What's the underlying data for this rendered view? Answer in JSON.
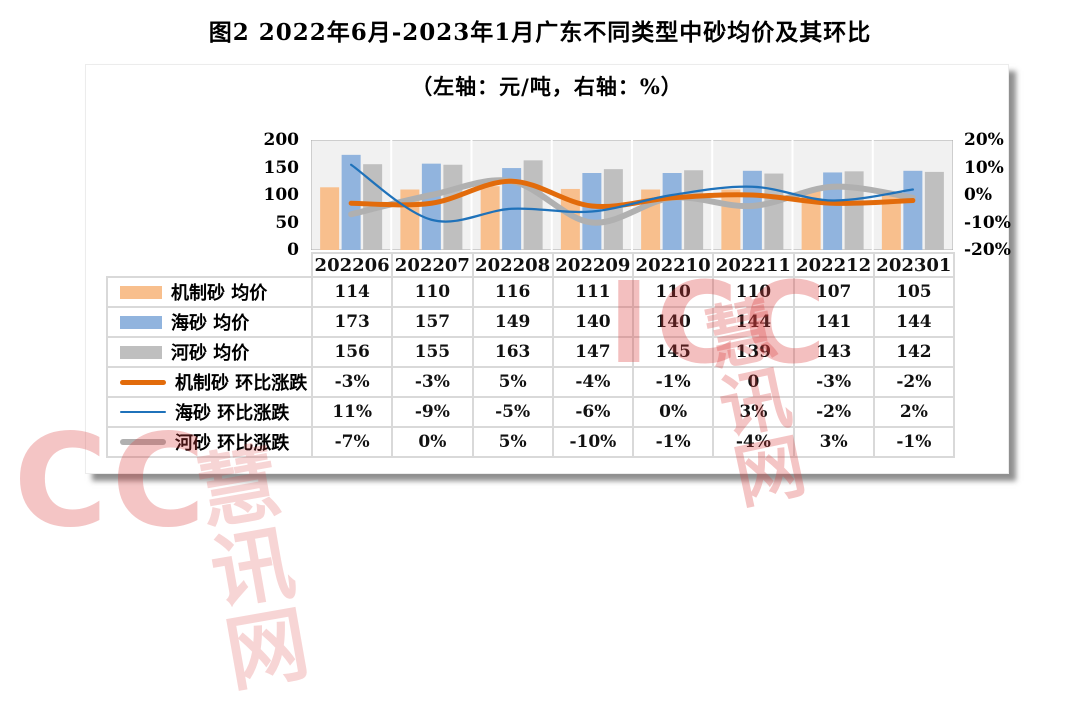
{
  "page": {
    "title": "图2 2022年6月-2023年1月广东不同类型中砂均价及其环比",
    "subtitle": "（左轴：元/吨，右轴：%）"
  },
  "watermark": {
    "brand": "ICC",
    "site": "慧讯网"
  },
  "chart_data": {
    "type": "bar+line",
    "title": "图2 2022年6月-2023年1月广东不同类型中砂均价及其环比",
    "subtitle": "（左轴：元/吨，右轴：%）",
    "categories": [
      "202206",
      "202207",
      "202208",
      "202209",
      "202210",
      "202211",
      "202212",
      "202301"
    ],
    "left_axis": {
      "unit": "元/吨",
      "ticks": [
        "200",
        "150",
        "100",
        "50",
        "0"
      ],
      "range": [
        0,
        200
      ]
    },
    "right_axis": {
      "unit": "%",
      "ticks": [
        "20%",
        "10%",
        "0%",
        "-10%",
        "-20%"
      ],
      "range": [
        -20,
        20
      ]
    },
    "grid": "vertical-white-separators",
    "legend_position": "table-left",
    "bar_series": [
      {
        "name": "机制砂 均价",
        "color": "#F8BF8D",
        "values": [
          114,
          110,
          116,
          111,
          110,
          110,
          107,
          105
        ],
        "display": [
          "114",
          "110",
          "116",
          "111",
          "110",
          "110",
          "107",
          "105"
        ]
      },
      {
        "name": "海砂 均价",
        "color": "#91B4DE",
        "values": [
          173,
          157,
          149,
          140,
          140,
          144,
          141,
          144
        ],
        "display": [
          "173",
          "157",
          "149",
          "140",
          "140",
          "144",
          "141",
          "144"
        ]
      },
      {
        "name": "河砂 均价",
        "color": "#BFBFBF",
        "values": [
          156,
          155,
          163,
          147,
          145,
          139,
          143,
          142
        ],
        "display": [
          "156",
          "155",
          "163",
          "147",
          "145",
          "139",
          "143",
          "142"
        ]
      }
    ],
    "line_series": [
      {
        "name": "机制砂 环比涨跌",
        "color": "#E26B0B",
        "stroke_width": 5,
        "values": [
          -3,
          -3,
          5,
          -4,
          -1,
          0,
          -3,
          -2
        ],
        "display": [
          "-3%",
          "-3%",
          "5%",
          "-4%",
          "-1%",
          "0",
          "-3%",
          "-2%"
        ]
      },
      {
        "name": "海砂 环比涨跌",
        "color": "#1F72BA",
        "stroke_width": 2.25,
        "values": [
          11,
          -9,
          -5,
          -6,
          0,
          3,
          -2,
          2
        ],
        "display": [
          "11%",
          "-9%",
          "-5%",
          "-6%",
          "0%",
          "3%",
          "-2%",
          "2%"
        ]
      },
      {
        "name": "河砂 环比涨跌",
        "color": "#B0B0B0",
        "stroke_width": 6,
        "values": [
          -7,
          0,
          5,
          -10,
          -1,
          -4,
          3,
          -1
        ],
        "display": [
          "-7%",
          "0%",
          "5%",
          "-10%",
          "-1%",
          "-4%",
          "3%",
          "-1%"
        ]
      }
    ]
  }
}
